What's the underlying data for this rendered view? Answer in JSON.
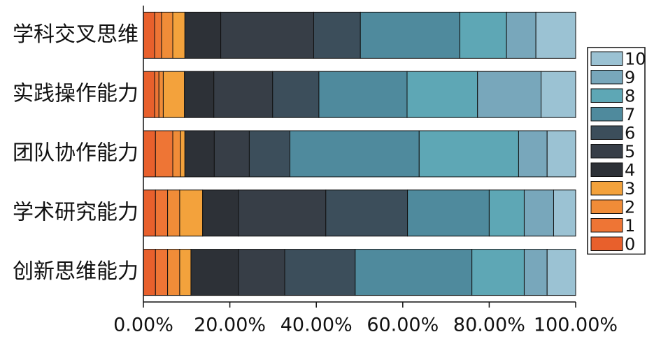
{
  "chart_data": {
    "type": "stacked-barh",
    "categories": [
      "学科交叉思维",
      "实践操作能力",
      "团队协作能力",
      "学术研究能力",
      "创新思维能力"
    ],
    "series": [
      {
        "name": "0",
        "color": "#e8602c",
        "values": [
          2.6,
          2.6,
          2.8,
          2.8,
          2.8
        ]
      },
      {
        "name": "1",
        "color": "#ee7535",
        "values": [
          1.6,
          1.0,
          4.0,
          2.8,
          2.8
        ]
      },
      {
        "name": "2",
        "color": "#f08c38",
        "values": [
          2.6,
          1.0,
          1.8,
          2.8,
          2.8
        ]
      },
      {
        "name": "3",
        "color": "#f3a23c",
        "values": [
          2.8,
          4.9,
          1.0,
          5.3,
          2.6
        ]
      },
      {
        "name": "4",
        "color": "#2d3137",
        "values": [
          8.3,
          6.8,
          6.8,
          8.3,
          11.0
        ]
      },
      {
        "name": "5",
        "color": "#373e47",
        "values": [
          21.5,
          13.6,
          8.1,
          20.2,
          10.7
        ]
      },
      {
        "name": "6",
        "color": "#3c4e5b",
        "values": [
          10.8,
          10.7,
          9.4,
          18.9,
          16.3
        ]
      },
      {
        "name": "7",
        "color": "#4f8a9d",
        "values": [
          23.0,
          20.4,
          29.9,
          18.9,
          27.0
        ]
      },
      {
        "name": "8",
        "color": "#5ea7b5",
        "values": [
          10.8,
          16.3,
          23.0,
          8.1,
          12.1
        ]
      },
      {
        "name": "9",
        "color": "#78a7bb",
        "values": [
          6.8,
          14.7,
          6.6,
          6.8,
          5.3
        ]
      },
      {
        "name": "10",
        "color": "#9bc2d3",
        "values": [
          9.2,
          8.0,
          6.6,
          5.1,
          6.6
        ]
      }
    ],
    "xlim": [
      0,
      100
    ],
    "xticks": [
      {
        "value": 0,
        "label": "0.00%"
      },
      {
        "value": 20,
        "label": "20.00%"
      },
      {
        "value": 40,
        "label": "40.00%"
      },
      {
        "value": 60,
        "label": "60.00%"
      },
      {
        "value": 80,
        "label": "80.00%"
      },
      {
        "value": 100,
        "label": "100.00%"
      }
    ],
    "legend": "right"
  }
}
